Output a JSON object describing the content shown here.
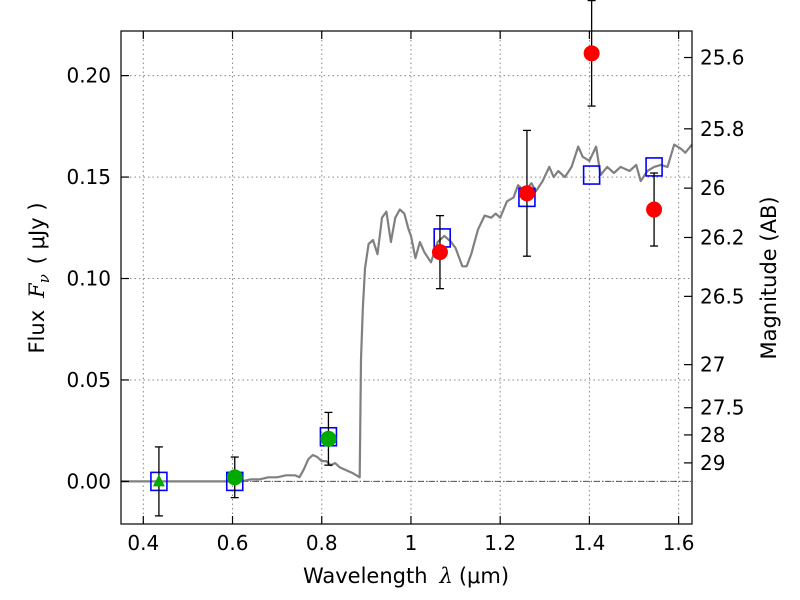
{
  "chart_data": {
    "type": "scatter",
    "title": "",
    "xlabel": "Wavelength  λ (μm)",
    "ylabel_left": "Flux  F_ν  ( μJy )",
    "ylabel_left_parts": {
      "prefix": "Flux",
      "symbol": "F",
      "subscript": "ν",
      "unit": "( μJy )"
    },
    "xlabel_parts": {
      "prefix": "Wavelength",
      "symbol": "λ",
      "unit": "(μm)"
    },
    "ylabel_right": "Magnitude (AB)",
    "xlim": [
      0.35,
      1.63
    ],
    "ylim": [
      -0.021,
      0.222
    ],
    "grid": true,
    "x_ticks": [
      {
        "value": 0.4,
        "label": "0.4"
      },
      {
        "value": 0.6,
        "label": "0.6"
      },
      {
        "value": 0.8,
        "label": "0.8"
      },
      {
        "value": 1.0,
        "label": "1"
      },
      {
        "value": 1.2,
        "label": "1.2"
      },
      {
        "value": 1.4,
        "label": "1.4"
      },
      {
        "value": 1.6,
        "label": "1.6"
      }
    ],
    "y_ticks": [
      {
        "value": 0.0,
        "label": "0.00"
      },
      {
        "value": 0.05,
        "label": "0.05"
      },
      {
        "value": 0.1,
        "label": "0.10"
      },
      {
        "value": 0.15,
        "label": "0.15"
      },
      {
        "value": 0.2,
        "label": "0.20"
      }
    ],
    "right_ticks": [
      {
        "mag": 25.6,
        "label": "25.6"
      },
      {
        "mag": 25.8,
        "label": "25.8"
      },
      {
        "mag": 26.0,
        "label": "26"
      },
      {
        "mag": 26.2,
        "label": "26.2"
      },
      {
        "mag": 26.5,
        "label": "26.5"
      },
      {
        "mag": 27.0,
        "label": "27"
      },
      {
        "mag": 27.5,
        "label": "27.5"
      },
      {
        "mag": 28.0,
        "label": "28"
      },
      {
        "mag": 29.0,
        "label": "29"
      }
    ],
    "zero_line": 0.0,
    "colors": {
      "model": "#808080",
      "red": "#ff0000",
      "green": "#00aa00",
      "square": "#0000ff",
      "errorbar": "#000000",
      "grid": "#888888"
    },
    "model_sed": [
      [
        0.35,
        0.0
      ],
      [
        0.5,
        0.0
      ],
      [
        0.6,
        0.0
      ],
      [
        0.62,
        0.0
      ],
      [
        0.64,
        0.001
      ],
      [
        0.66,
        0.001
      ],
      [
        0.68,
        0.002
      ],
      [
        0.7,
        0.002
      ],
      [
        0.72,
        0.003
      ],
      [
        0.74,
        0.003
      ],
      [
        0.75,
        0.002
      ],
      [
        0.76,
        0.006
      ],
      [
        0.77,
        0.011
      ],
      [
        0.78,
        0.013
      ],
      [
        0.79,
        0.012
      ],
      [
        0.8,
        0.01
      ],
      [
        0.81,
        0.01
      ],
      [
        0.82,
        0.008
      ],
      [
        0.83,
        0.009
      ],
      [
        0.84,
        0.007
      ],
      [
        0.85,
        0.006
      ],
      [
        0.86,
        0.005
      ],
      [
        0.87,
        0.004
      ],
      [
        0.885,
        0.002
      ],
      [
        0.888,
        0.06
      ],
      [
        0.892,
        0.085
      ],
      [
        0.897,
        0.105
      ],
      [
        0.905,
        0.117
      ],
      [
        0.915,
        0.119
      ],
      [
        0.925,
        0.112
      ],
      [
        0.935,
        0.13
      ],
      [
        0.945,
        0.133
      ],
      [
        0.955,
        0.118
      ],
      [
        0.965,
        0.13
      ],
      [
        0.975,
        0.134
      ],
      [
        0.985,
        0.132
      ],
      [
        0.995,
        0.124
      ],
      [
        1.0,
        0.121
      ],
      [
        1.01,
        0.11
      ],
      [
        1.02,
        0.118
      ],
      [
        1.03,
        0.113
      ],
      [
        1.045,
        0.108
      ],
      [
        1.06,
        0.118
      ],
      [
        1.075,
        0.121
      ],
      [
        1.09,
        0.118
      ],
      [
        1.1,
        0.115
      ],
      [
        1.115,
        0.106
      ],
      [
        1.125,
        0.106
      ],
      [
        1.135,
        0.112
      ],
      [
        1.15,
        0.124
      ],
      [
        1.165,
        0.131
      ],
      [
        1.18,
        0.13
      ],
      [
        1.19,
        0.132
      ],
      [
        1.2,
        0.13
      ],
      [
        1.215,
        0.138
      ],
      [
        1.23,
        0.14
      ],
      [
        1.24,
        0.146
      ],
      [
        1.255,
        0.143
      ],
      [
        1.27,
        0.147
      ],
      [
        1.28,
        0.143
      ],
      [
        1.295,
        0.148
      ],
      [
        1.31,
        0.155
      ],
      [
        1.32,
        0.15
      ],
      [
        1.33,
        0.153
      ],
      [
        1.345,
        0.15
      ],
      [
        1.36,
        0.155
      ],
      [
        1.375,
        0.165
      ],
      [
        1.385,
        0.16
      ],
      [
        1.4,
        0.158
      ],
      [
        1.415,
        0.165
      ],
      [
        1.425,
        0.151
      ],
      [
        1.44,
        0.155
      ],
      [
        1.455,
        0.152
      ],
      [
        1.47,
        0.155
      ],
      [
        1.49,
        0.153
      ],
      [
        1.505,
        0.156
      ],
      [
        1.515,
        0.148
      ],
      [
        1.53,
        0.153
      ],
      [
        1.545,
        0.155
      ],
      [
        1.56,
        0.156
      ],
      [
        1.575,
        0.155
      ],
      [
        1.59,
        0.166
      ],
      [
        1.605,
        0.164
      ],
      [
        1.615,
        0.162
      ],
      [
        1.63,
        0.166
      ]
    ],
    "series": [
      {
        "name": "",
        "marker": "square",
        "points": [
          {
            "x": 0.435,
            "y": 0.0
          },
          {
            "x": 0.605,
            "y": 0.0
          },
          {
            "x": 0.815,
            "y": 0.022
          },
          {
            "x": 1.07,
            "y": 0.12
          },
          {
            "x": 1.26,
            "y": 0.14
          },
          {
            "x": 1.405,
            "y": 0.151
          },
          {
            "x": 1.545,
            "y": 0.155
          }
        ]
      },
      {
        "name": "",
        "marker": "circle-red",
        "points": [
          {
            "x": 1.065,
            "y": 0.113,
            "err": 0.018
          },
          {
            "x": 1.26,
            "y": 0.142,
            "err": 0.031
          },
          {
            "x": 1.405,
            "y": 0.211,
            "err": 0.026
          },
          {
            "x": 1.545,
            "y": 0.134,
            "err": 0.018
          }
        ]
      },
      {
        "name": "",
        "marker": "circle-green",
        "points": [
          {
            "x": 0.605,
            "y": 0.002,
            "err": 0.01
          },
          {
            "x": 0.815,
            "y": 0.021,
            "err": 0.013
          }
        ]
      },
      {
        "name": "",
        "marker": "triangle-green",
        "points": [
          {
            "x": 0.435,
            "y": 0.0,
            "err": 0.017
          }
        ]
      }
    ]
  }
}
